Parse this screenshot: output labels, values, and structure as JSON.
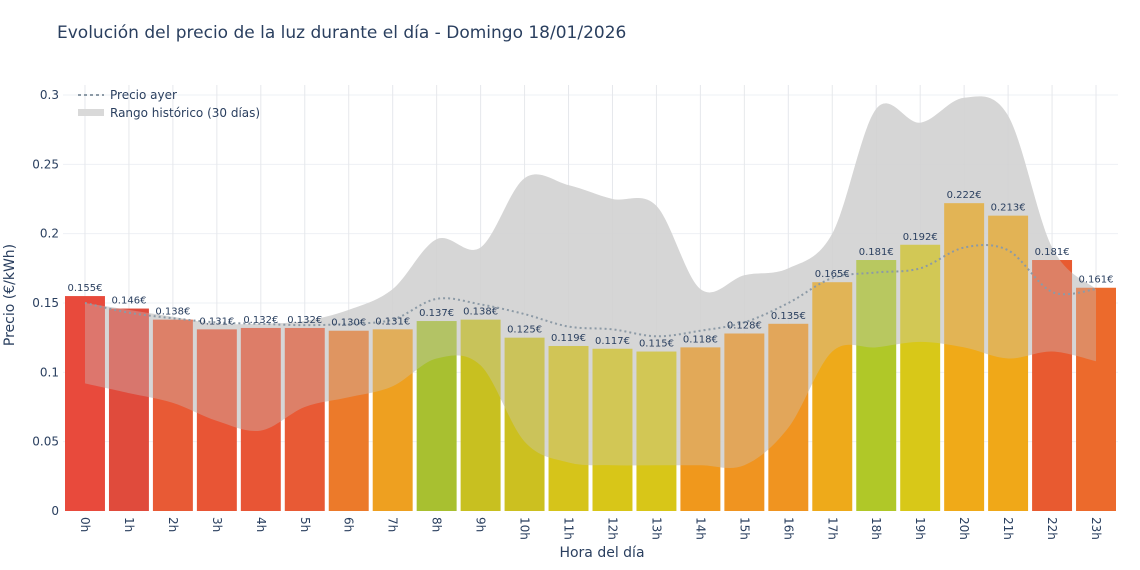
{
  "chart_data": {
    "type": "bar",
    "title": "Evolución del precio de la luz durante el día - Domingo 18/01/2026",
    "xlabel": "Hora del día",
    "ylabel": "Precio (€/kWh)",
    "ylim": [
      0,
      0.3
    ],
    "yticks": [
      "0",
      "0.05",
      "0.1",
      "0.15",
      "0.2",
      "0.25",
      "0.3"
    ],
    "grid": true,
    "legend_placement": "top-left",
    "categories": [
      "0h",
      "1h",
      "2h",
      "3h",
      "4h",
      "5h",
      "6h",
      "7h",
      "8h",
      "9h",
      "10h",
      "11h",
      "12h",
      "13h",
      "14h",
      "15h",
      "16h",
      "17h",
      "18h",
      "19h",
      "20h",
      "21h",
      "22h",
      "23h"
    ],
    "values": [
      0.155,
      0.146,
      0.138,
      0.131,
      0.132,
      0.132,
      0.13,
      0.131,
      0.137,
      0.138,
      0.125,
      0.119,
      0.117,
      0.115,
      0.118,
      0.128,
      0.135,
      0.165,
      0.181,
      0.192,
      0.222,
      0.213,
      0.181,
      0.161
    ],
    "labels": [
      "0.155€",
      "0.146€",
      "0.138€",
      "0.131€",
      "0.132€",
      "0.132€",
      "0.130€",
      "0.131€",
      "0.137€",
      "0.138€",
      "0.125€",
      "0.119€",
      "0.117€",
      "0.115€",
      "0.118€",
      "0.128€",
      "0.135€",
      "0.165€",
      "0.181€",
      "0.192€",
      "0.222€",
      "0.213€",
      "0.181€",
      "0.161€"
    ],
    "bar_colors": [
      "#e84a3c",
      "#e04b3c",
      "#e85a35",
      "#e85535",
      "#e85535",
      "#e85a35",
      "#ec7a2a",
      "#eea020",
      "#a8c030",
      "#c8c020",
      "#ccc020",
      "#d6c41a",
      "#d8c618",
      "#d8c618",
      "#f0981c",
      "#f09420",
      "#f09420",
      "#eeaa1a",
      "#b0c828",
      "#d8c818",
      "#f0aa18",
      "#f0a818",
      "#e85a30",
      "#ec6a2c"
    ],
    "series": [
      {
        "name": "Precio ayer",
        "style": "dotted-line",
        "color": "#8c9aa6",
        "values": [
          0.15,
          0.143,
          0.139,
          0.136,
          0.135,
          0.134,
          0.135,
          0.138,
          0.153,
          0.149,
          0.142,
          0.133,
          0.131,
          0.126,
          0.13,
          0.136,
          0.15,
          0.168,
          0.172,
          0.175,
          0.19,
          0.188,
          0.158,
          0.16
        ]
      },
      {
        "name": "Rango histórico (30 días)",
        "style": "band",
        "color": "#d9d9d9",
        "upper": [
          0.15,
          0.145,
          0.14,
          0.135,
          0.135,
          0.137,
          0.145,
          0.16,
          0.196,
          0.19,
          0.24,
          0.235,
          0.225,
          0.22,
          0.16,
          0.17,
          0.175,
          0.2,
          0.29,
          0.28,
          0.298,
          0.285,
          0.19,
          0.16
        ],
        "lower": [
          0.092,
          0.085,
          0.078,
          0.065,
          0.058,
          0.075,
          0.082,
          0.09,
          0.11,
          0.105,
          0.05,
          0.035,
          0.033,
          0.033,
          0.033,
          0.033,
          0.06,
          0.115,
          0.118,
          0.122,
          0.118,
          0.11,
          0.115,
          0.108
        ]
      }
    ]
  }
}
